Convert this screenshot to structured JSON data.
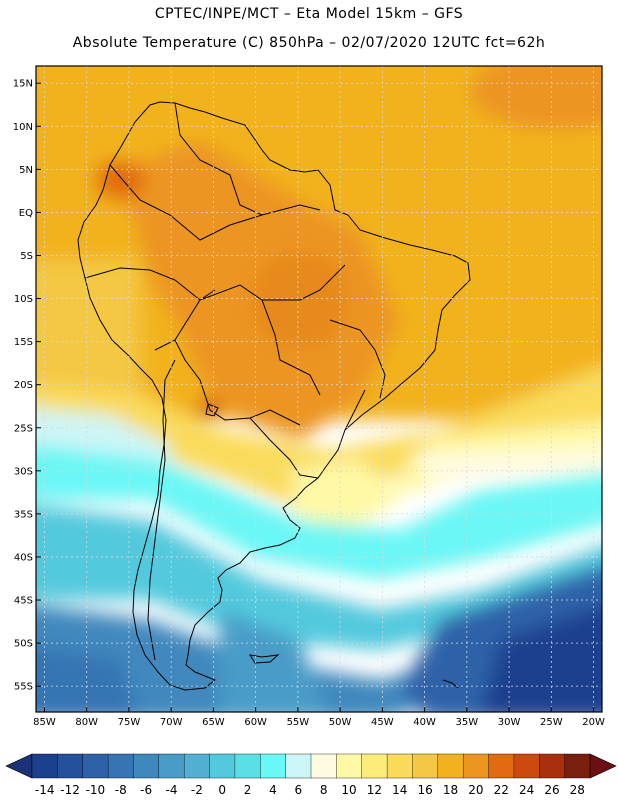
{
  "title": {
    "line1": "CPTEC/INPE/MCT –  Eta Model 15km – GFS",
    "line2": "Absolute Temperature (C) 850hPa – 02/07/2020 12UTC fct=62h"
  },
  "map": {
    "lat_labels": [
      "15N",
      "10N",
      "5N",
      "EQ",
      "5S",
      "10S",
      "15S",
      "20S",
      "25S",
      "30S",
      "35S",
      "40S",
      "45S",
      "50S",
      "55S"
    ],
    "lat_values": [
      15,
      10,
      5,
      0,
      -5,
      -10,
      -15,
      -20,
      -25,
      -30,
      -35,
      -40,
      -45,
      -50,
      -55
    ],
    "lon_labels": [
      "85W",
      "80W",
      "75W",
      "70W",
      "65W",
      "60W",
      "55W",
      "50W",
      "45W",
      "40W",
      "35W",
      "30W",
      "25W",
      "20W"
    ],
    "lon_values": [
      -85,
      -80,
      -75,
      -70,
      -65,
      -60,
      -55,
      -50,
      -45,
      -40,
      -35,
      -30,
      -25,
      -20
    ],
    "lat_range": [
      -58,
      17
    ],
    "lon_range": [
      -86,
      -19
    ]
  },
  "colorbar": {
    "labels": [
      "-14",
      "-12",
      "-10",
      "-8",
      "-6",
      "-4",
      "-2",
      "0",
      "2",
      "4",
      "6",
      "8",
      "10",
      "12",
      "14",
      "16",
      "18",
      "20",
      "22",
      "24",
      "26",
      "28"
    ],
    "colors": [
      "#1c3f8e",
      "#24519c",
      "#2d62a8",
      "#3674b3",
      "#3f88bd",
      "#4a9cc8",
      "#52b1d3",
      "#53c9dd",
      "#5adfe5",
      "#6bf7f5",
      "#cdf6f6",
      "#fffbe0",
      "#fff9a6",
      "#fcec7a",
      "#fadb5c",
      "#f4c843",
      "#f2b21e",
      "#ec9520",
      "#e26a10",
      "#cc4a0e",
      "#a8300d",
      "#7a1e0d"
    ],
    "low_end_color": "#1c3278",
    "high_end_color": "#6b0f14"
  }
}
